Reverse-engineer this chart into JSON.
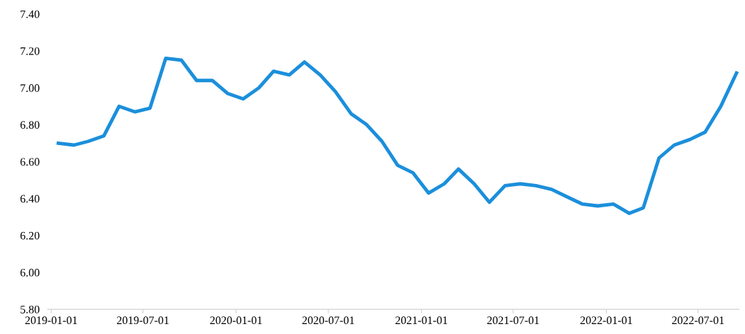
{
  "chart_data": {
    "type": "line",
    "x": [
      "2019-01-15",
      "2019-02-15",
      "2019-03-15",
      "2019-04-15",
      "2019-05-15",
      "2019-06-15",
      "2019-07-15",
      "2019-08-15",
      "2019-09-15",
      "2019-10-15",
      "2019-11-15",
      "2019-12-15",
      "2020-01-15",
      "2020-02-15",
      "2020-03-15",
      "2020-04-15",
      "2020-05-15",
      "2020-06-15",
      "2020-07-15",
      "2020-08-15",
      "2020-09-15",
      "2020-10-15",
      "2020-11-15",
      "2020-12-15",
      "2021-01-15",
      "2021-02-15",
      "2021-03-15",
      "2021-04-15",
      "2021-05-15",
      "2021-06-15",
      "2021-07-15",
      "2021-08-15",
      "2021-09-15",
      "2021-10-15",
      "2021-11-15",
      "2021-12-15",
      "2022-01-15",
      "2022-02-15",
      "2022-03-15",
      "2022-04-15",
      "2022-05-15",
      "2022-06-15",
      "2022-07-15",
      "2022-08-15",
      "2022-09-15"
    ],
    "series": [
      {
        "color": "#1b8fdb",
        "values": [
          6.7,
          6.69,
          6.71,
          6.74,
          6.9,
          6.87,
          6.89,
          7.16,
          7.15,
          7.04,
          7.04,
          6.97,
          6.94,
          7.0,
          7.09,
          7.07,
          7.14,
          7.07,
          6.98,
          6.86,
          6.8,
          6.71,
          6.58,
          6.54,
          6.43,
          6.48,
          6.56,
          6.48,
          6.38,
          6.47,
          6.48,
          6.47,
          6.45,
          6.41,
          6.37,
          6.36,
          6.37,
          6.32,
          6.35,
          6.62,
          6.69,
          6.72,
          6.76,
          6.9,
          7.08
        ]
      }
    ],
    "xlim": [
      "2018-12-25",
      "2022-09-20"
    ],
    "xticks": [
      {
        "value": "2019-01-01",
        "label": "2019-01-01"
      },
      {
        "value": "2019-07-01",
        "label": "2019-07-01"
      },
      {
        "value": "2020-01-01",
        "label": "2020-01-01"
      },
      {
        "value": "2020-07-01",
        "label": "2020-07-01"
      },
      {
        "value": "2021-01-01",
        "label": "2021-01-01"
      },
      {
        "value": "2021-07-01",
        "label": "2021-07-01"
      },
      {
        "value": "2022-01-01",
        "label": "2022-01-01"
      },
      {
        "value": "2022-07-01",
        "label": "2022-07-01"
      }
    ],
    "ylim": [
      5.8,
      7.4
    ],
    "yticks": [
      {
        "value": 5.8,
        "label": "5.80"
      },
      {
        "value": 6.0,
        "label": "6.00"
      },
      {
        "value": 6.2,
        "label": "6.20"
      },
      {
        "value": 6.4,
        "label": "6.40"
      },
      {
        "value": 6.6,
        "label": "6.60"
      },
      {
        "value": 6.8,
        "label": "6.80"
      },
      {
        "value": 7.0,
        "label": "7.00"
      },
      {
        "value": 7.2,
        "label": "7.20"
      },
      {
        "value": 7.4,
        "label": "7.40"
      }
    ],
    "grid": false,
    "legend": false,
    "marker": "none",
    "line_style": "solid"
  }
}
